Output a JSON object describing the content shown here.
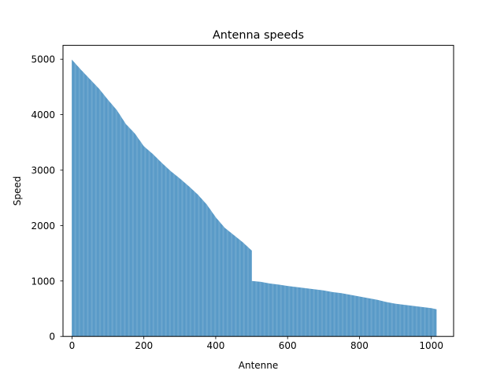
{
  "chart_data": {
    "type": "bar",
    "title": "Antenna speeds",
    "xlabel": "Antenne",
    "ylabel": "Speed",
    "xlim": [
      -25,
      1062
    ],
    "ylim": [
      0,
      5250
    ],
    "xticks": [
      0,
      200,
      400,
      600,
      800,
      1000
    ],
    "yticks": [
      0,
      1000,
      2000,
      3000,
      4000,
      5000
    ],
    "grid": false,
    "legend": "none",
    "bar_color": "#1f77b4",
    "bar_count": 1015,
    "series": [
      {
        "x": [
          0,
          25,
          50,
          75,
          100,
          125,
          150,
          175,
          200,
          225,
          250,
          275,
          300,
          325,
          350,
          375,
          400,
          425,
          450,
          475,
          500,
          501,
          525,
          550,
          575,
          600,
          625,
          650,
          675,
          700,
          725,
          750,
          775,
          800,
          825,
          850,
          875,
          900,
          925,
          950,
          975,
          1000,
          1014
        ],
        "values": [
          4990,
          4810,
          4640,
          4470,
          4270,
          4080,
          3830,
          3660,
          3430,
          3290,
          3130,
          2980,
          2850,
          2710,
          2560,
          2380,
          2150,
          1960,
          1830,
          1700,
          1550,
          1000,
          985,
          955,
          935,
          910,
          890,
          870,
          850,
          830,
          800,
          780,
          750,
          720,
          690,
          660,
          620,
          590,
          570,
          550,
          530,
          510,
          490
        ]
      }
    ]
  }
}
